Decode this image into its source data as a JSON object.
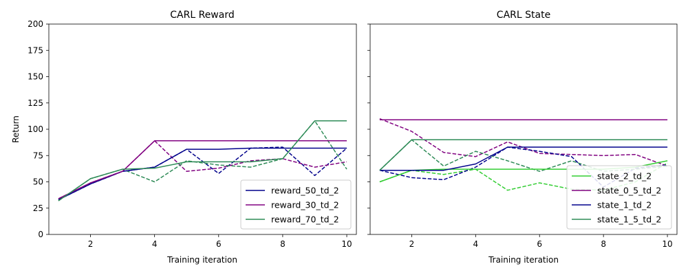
{
  "chart_data": [
    {
      "type": "line",
      "title": "CARL Reward",
      "xlabel": "Training iteration",
      "ylabel": "Return",
      "xlim": [
        0.7,
        10.3
      ],
      "ylim": [
        0,
        200
      ],
      "xticks": [
        2,
        4,
        6,
        8,
        10
      ],
      "yticks": [
        0,
        25,
        50,
        75,
        100,
        125,
        150,
        175,
        200
      ],
      "legend": "lower-right",
      "x": [
        1,
        2,
        3,
        4,
        5,
        6,
        7,
        8,
        9,
        10
      ],
      "series": [
        {
          "name": "reward_50_td_2",
          "color": "#00008b",
          "style": "solid",
          "values": [
            33,
            48,
            60,
            64,
            81,
            81,
            82,
            82,
            82,
            82
          ]
        },
        {
          "name": "reward_30_td_2",
          "color": "#800080",
          "style": "solid",
          "values": [
            34,
            49,
            60,
            89,
            89,
            89,
            89,
            89,
            89,
            89
          ]
        },
        {
          "name": "reward_70_td_2",
          "color": "#2e8b57",
          "style": "solid",
          "values": [
            32,
            53,
            62,
            63,
            69,
            69,
            69,
            72,
            108,
            108
          ]
        },
        {
          "name": "",
          "color": "#00008b",
          "style": "dashed",
          "values": [
            33,
            48,
            60,
            64,
            81,
            58,
            82,
            83,
            56,
            82
          ]
        },
        {
          "name": "",
          "color": "#800080",
          "style": "dashed",
          "values": [
            34,
            49,
            60,
            89,
            60,
            63,
            70,
            72,
            64,
            69
          ]
        },
        {
          "name": "",
          "color": "#2e8b57",
          "style": "dashed",
          "values": [
            32,
            53,
            62,
            50,
            70,
            66,
            64,
            72,
            108,
            62
          ]
        }
      ]
    },
    {
      "type": "line",
      "title": "CARL State",
      "xlabel": "Training iteration",
      "ylabel": "",
      "xlim": [
        0.7,
        10.3
      ],
      "ylim": [
        0,
        200
      ],
      "xticks": [
        2,
        4,
        6,
        8,
        10
      ],
      "yticks": [
        0,
        25,
        50,
        75,
        100,
        125,
        150,
        175,
        200
      ],
      "legend": "lower-right",
      "x": [
        1,
        2,
        3,
        4,
        5,
        6,
        7,
        8,
        9,
        10
      ],
      "series": [
        {
          "name": "state_2_td_2",
          "color": "#32cd32",
          "style": "solid",
          "values": [
            50,
            61,
            62,
            62,
            62,
            62,
            62,
            62,
            64,
            70
          ]
        },
        {
          "name": "state_0_5_td_2",
          "color": "#800080",
          "style": "solid",
          "values": [
            109,
            109,
            109,
            109,
            109,
            109,
            109,
            109,
            109,
            109
          ]
        },
        {
          "name": "state_1_td_2",
          "color": "#00008b",
          "style": "solid",
          "values": [
            61,
            61,
            61,
            67,
            83,
            83,
            83,
            83,
            83,
            83
          ]
        },
        {
          "name": "state_1_5_td_2",
          "color": "#2e8b57",
          "style": "solid",
          "values": [
            61,
            90,
            90,
            90,
            90,
            90,
            90,
            90,
            90,
            90
          ]
        },
        {
          "name": "",
          "color": "#32cd32",
          "style": "dashed",
          "values": [
            50,
            61,
            57,
            62,
            42,
            49,
            43,
            42,
            50,
            68
          ]
        },
        {
          "name": "",
          "color": "#800080",
          "style": "dashed",
          "values": [
            110,
            98,
            78,
            74,
            88,
            77,
            76,
            75,
            76,
            65
          ]
        },
        {
          "name": "",
          "color": "#00008b",
          "style": "dashed",
          "values": [
            61,
            54,
            52,
            64,
            83,
            79,
            74,
            45,
            63,
            66
          ]
        },
        {
          "name": "",
          "color": "#2e8b57",
          "style": "dashed",
          "values": [
            61,
            90,
            65,
            79,
            70,
            60,
            70,
            60,
            62,
            65
          ]
        }
      ]
    }
  ]
}
